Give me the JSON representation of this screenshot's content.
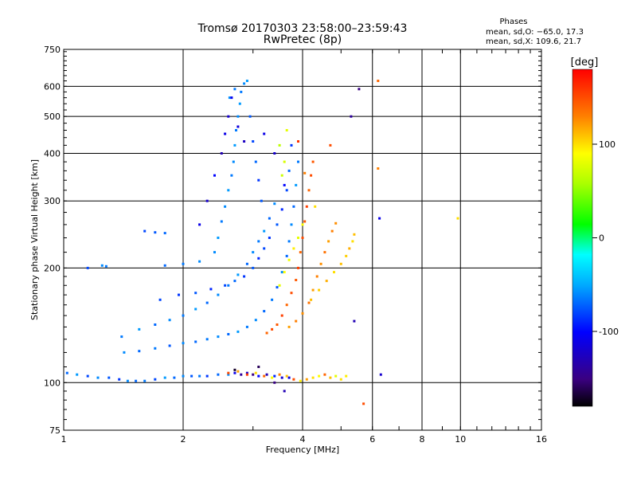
{
  "chart_data": {
    "type": "scatter",
    "title": "Tromsø 20170303 23:58:00–23:59:43",
    "subtitle": "RwPretec (8p)",
    "legend_title": "Phases",
    "stats": [
      "mean, sd,O: −65.0, 17.3",
      "mean, sd,X: 109.6, 21.7"
    ],
    "xlabel": "Frequency [MHz]",
    "ylabel": "Stationary phase Virtual Height [km]",
    "x_scale": "log2",
    "y_scale": "log",
    "xlim": [
      1,
      16
    ],
    "ylim": [
      75,
      750
    ],
    "x_ticks": [
      1,
      2,
      4,
      6,
      8,
      10,
      16
    ],
    "y_ticks": [
      75,
      100,
      200,
      300,
      400,
      500,
      600,
      750
    ],
    "grid": true,
    "colorbar": {
      "label": "[deg]",
      "ticks": [
        100,
        0,
        -100
      ],
      "range": [
        -180,
        180
      ]
    },
    "points": [
      [
        1.02,
        106,
        -70
      ],
      [
        1.08,
        105,
        -55
      ],
      [
        1.15,
        104,
        -80
      ],
      [
        1.22,
        103,
        -60
      ],
      [
        1.3,
        103,
        -75
      ],
      [
        1.38,
        102,
        -85
      ],
      [
        1.45,
        101,
        -60
      ],
      [
        1.52,
        101,
        -70
      ],
      [
        1.6,
        101,
        -65
      ],
      [
        1.7,
        102,
        -80
      ],
      [
        1.8,
        103,
        -55
      ],
      [
        1.9,
        103,
        -70
      ],
      [
        2.0,
        104,
        -60
      ],
      [
        2.1,
        104,
        -75
      ],
      [
        2.2,
        104,
        -65
      ],
      [
        2.3,
        104,
        -85
      ],
      [
        2.45,
        105,
        -70
      ],
      [
        2.6,
        105,
        -60
      ],
      [
        2.7,
        106,
        -110
      ],
      [
        2.8,
        105,
        -140
      ],
      [
        2.9,
        106,
        -120
      ],
      [
        3.0,
        105,
        -150
      ],
      [
        3.1,
        104,
        -100
      ],
      [
        3.25,
        105,
        -130
      ],
      [
        3.4,
        104,
        -90
      ],
      [
        3.55,
        103,
        -120
      ],
      [
        3.7,
        103,
        -110
      ],
      [
        2.6,
        106,
        150
      ],
      [
        2.75,
        107,
        120
      ],
      [
        2.9,
        105,
        160
      ],
      [
        3.05,
        106,
        100
      ],
      [
        3.2,
        104,
        140
      ],
      [
        3.35,
        103,
        90
      ],
      [
        3.5,
        105,
        130
      ],
      [
        3.65,
        104,
        110
      ],
      [
        3.8,
        102,
        150
      ],
      [
        3.95,
        101,
        95
      ],
      [
        4.1,
        102,
        120
      ],
      [
        4.25,
        103,
        100
      ],
      [
        4.4,
        104,
        90
      ],
      [
        4.55,
        105,
        140
      ],
      [
        4.7,
        103,
        110
      ],
      [
        4.85,
        104,
        80
      ],
      [
        5.0,
        102,
        100
      ],
      [
        5.15,
        104,
        95
      ],
      [
        1.42,
        120,
        -60
      ],
      [
        1.55,
        121,
        -70
      ],
      [
        1.7,
        123,
        -65
      ],
      [
        1.85,
        125,
        -75
      ],
      [
        2.0,
        127,
        -60
      ],
      [
        2.15,
        128,
        -70
      ],
      [
        2.3,
        130,
        -65
      ],
      [
        2.45,
        132,
        -60
      ],
      [
        2.6,
        134,
        -70
      ],
      [
        2.75,
        136,
        -55
      ],
      [
        2.9,
        140,
        -65
      ],
      [
        3.05,
        146,
        -60
      ],
      [
        3.2,
        154,
        -70
      ],
      [
        3.35,
        165,
        -65
      ],
      [
        3.45,
        178,
        -75
      ],
      [
        3.55,
        195,
        -60
      ],
      [
        3.65,
        215,
        -70
      ],
      [
        3.7,
        235,
        -65
      ],
      [
        3.75,
        260,
        -60
      ],
      [
        3.8,
        290,
        -70
      ],
      [
        3.85,
        330,
        -55
      ],
      [
        3.9,
        380,
        -65
      ],
      [
        1.4,
        132,
        -65
      ],
      [
        1.55,
        138,
        -55
      ],
      [
        1.7,
        142,
        -70
      ],
      [
        1.85,
        146,
        -60
      ],
      [
        2.0,
        150,
        -65
      ],
      [
        2.15,
        156,
        -55
      ],
      [
        2.3,
        162,
        -70
      ],
      [
        2.45,
        170,
        -60
      ],
      [
        2.6,
        180,
        -65
      ],
      [
        2.75,
        192,
        -55
      ],
      [
        2.9,
        205,
        -70
      ],
      [
        3.0,
        220,
        -60
      ],
      [
        3.1,
        235,
        -65
      ],
      [
        3.2,
        250,
        -55
      ],
      [
        3.3,
        270,
        -70
      ],
      [
        3.4,
        295,
        -60
      ],
      [
        1.75,
        165,
        -80
      ],
      [
        1.95,
        170,
        -85
      ],
      [
        2.15,
        172,
        -75
      ],
      [
        2.35,
        176,
        -90
      ],
      [
        2.55,
        180,
        -80
      ],
      [
        2.7,
        185,
        -70
      ],
      [
        2.85,
        190,
        -85
      ],
      [
        3.0,
        200,
        -75
      ],
      [
        3.1,
        212,
        -90
      ],
      [
        3.2,
        225,
        -80
      ],
      [
        3.3,
        240,
        -85
      ],
      [
        3.45,
        260,
        -75
      ],
      [
        3.55,
        285,
        -90
      ],
      [
        3.65,
        320,
        -80
      ],
      [
        3.7,
        360,
        -70
      ],
      [
        3.75,
        420,
        -85
      ],
      [
        2.4,
        220,
        -60
      ],
      [
        2.45,
        240,
        -55
      ],
      [
        2.5,
        265,
        -65
      ],
      [
        2.55,
        290,
        -60
      ],
      [
        2.6,
        320,
        -55
      ],
      [
        2.65,
        350,
        -65
      ],
      [
        2.68,
        380,
        -60
      ],
      [
        2.7,
        420,
        -55
      ],
      [
        2.72,
        460,
        -65
      ],
      [
        2.75,
        500,
        -60
      ],
      [
        2.78,
        540,
        -55
      ],
      [
        2.8,
        580,
        -65
      ],
      [
        2.85,
        610,
        -60
      ],
      [
        2.9,
        620,
        -55
      ],
      [
        2.62,
        560,
        -60
      ],
      [
        2.7,
        590,
        -65
      ],
      [
        2.95,
        500,
        -75
      ],
      [
        3.0,
        430,
        -80
      ],
      [
        3.05,
        380,
        -70
      ],
      [
        3.1,
        340,
        -85
      ],
      [
        3.15,
        300,
        -75
      ],
      [
        2.2,
        260,
        -110
      ],
      [
        2.3,
        300,
        -120
      ],
      [
        2.4,
        350,
        -100
      ],
      [
        2.5,
        400,
        -130
      ],
      [
        2.55,
        450,
        -110
      ],
      [
        2.6,
        500,
        -120
      ],
      [
        2.65,
        560,
        -105
      ],
      [
        2.75,
        470,
        -115
      ],
      [
        2.85,
        430,
        -125
      ],
      [
        3.2,
        450,
        -110
      ],
      [
        3.4,
        400,
        -120
      ],
      [
        3.6,
        330,
        -100
      ],
      [
        1.8,
        203,
        -70
      ],
      [
        2.0,
        205,
        -65
      ],
      [
        2.2,
        208,
        -60
      ],
      [
        1.6,
        250,
        -80
      ],
      [
        1.7,
        248,
        -75
      ],
      [
        1.8,
        247,
        -70
      ],
      [
        1.25,
        203,
        -60
      ],
      [
        1.28,
        202,
        -65
      ],
      [
        1.15,
        200,
        -80
      ],
      [
        3.25,
        135,
        140
      ],
      [
        3.35,
        138,
        150
      ],
      [
        3.45,
        142,
        145
      ],
      [
        3.55,
        150,
        155
      ],
      [
        3.65,
        160,
        140
      ],
      [
        3.75,
        172,
        150
      ],
      [
        3.85,
        186,
        145
      ],
      [
        3.9,
        200,
        155
      ],
      [
        3.95,
        220,
        140
      ],
      [
        4.0,
        240,
        150
      ],
      [
        4.05,
        265,
        145
      ],
      [
        4.1,
        290,
        155
      ],
      [
        4.15,
        320,
        140
      ],
      [
        4.2,
        350,
        150
      ],
      [
        4.25,
        380,
        145
      ],
      [
        3.7,
        140,
        120
      ],
      [
        3.85,
        145,
        130
      ],
      [
        4.0,
        152,
        125
      ],
      [
        4.15,
        162,
        135
      ],
      [
        4.25,
        175,
        120
      ],
      [
        4.35,
        190,
        130
      ],
      [
        4.45,
        205,
        125
      ],
      [
        4.55,
        220,
        135
      ],
      [
        4.65,
        235,
        120
      ],
      [
        4.75,
        250,
        130
      ],
      [
        4.85,
        262,
        125
      ],
      [
        4.2,
        165,
        110
      ],
      [
        4.4,
        175,
        105
      ],
      [
        4.6,
        185,
        115
      ],
      [
        4.8,
        195,
        100
      ],
      [
        5.0,
        205,
        110
      ],
      [
        5.15,
        215,
        105
      ],
      [
        5.25,
        225,
        115
      ],
      [
        5.35,
        235,
        100
      ],
      [
        5.4,
        245,
        110
      ],
      [
        3.5,
        180,
        80
      ],
      [
        3.6,
        195,
        90
      ],
      [
        3.7,
        210,
        85
      ],
      [
        3.8,
        225,
        95
      ],
      [
        3.9,
        240,
        80
      ],
      [
        4.0,
        260,
        90
      ],
      [
        3.55,
        350,
        70
      ],
      [
        3.6,
        380,
        75
      ],
      [
        3.65,
        460,
        80
      ],
      [
        3.5,
        420,
        65
      ],
      [
        4.7,
        420,
        150
      ],
      [
        4.3,
        290,
        100
      ],
      [
        3.9,
        430,
        160
      ],
      [
        4.05,
        355,
        130
      ],
      [
        6.2,
        620,
        140
      ],
      [
        6.2,
        365,
        130
      ],
      [
        6.25,
        270,
        -110
      ],
      [
        6.3,
        105,
        -120
      ],
      [
        5.55,
        590,
        -150
      ],
      [
        5.3,
        500,
        -140
      ],
      [
        5.4,
        145,
        -130
      ],
      [
        5.7,
        88,
        150
      ],
      [
        9.85,
        270,
        100
      ],
      [
        3.6,
        95,
        -130
      ],
      [
        3.4,
        100,
        -150
      ],
      [
        3.1,
        110,
        -160
      ],
      [
        2.7,
        108,
        -170
      ]
    ]
  }
}
